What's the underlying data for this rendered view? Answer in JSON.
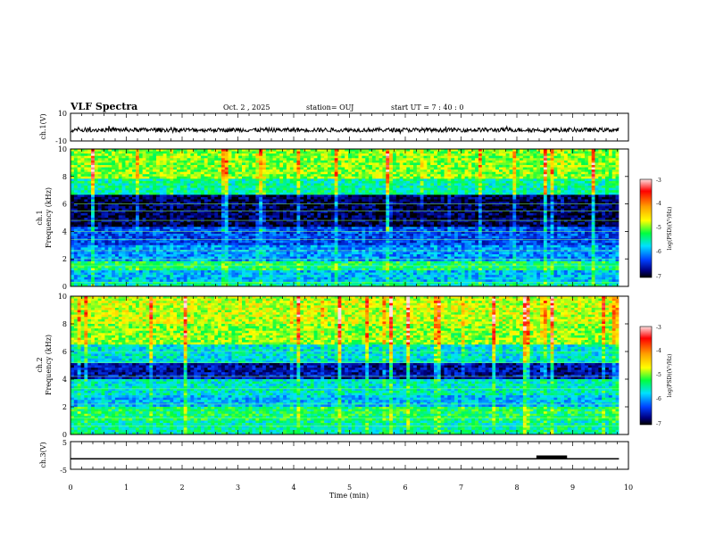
{
  "header": {
    "title": "VLF Spectra",
    "date": "Oct. 2 , 2025",
    "station": "station= OUJ",
    "start": "start  UT =   7 : 40 : 0"
  },
  "colorbar": {
    "label": "log(PSD)(V²/Hz)",
    "ticks": [
      "-3",
      "-4",
      "-5",
      "-6",
      "-7"
    ],
    "colors": [
      "#ffe0e0",
      "#ff0000",
      "#ffa000",
      "#ffff00",
      "#00ff40",
      "#00e0ff",
      "#0040ff",
      "#000080",
      "#000000"
    ]
  },
  "chart_data": [
    {
      "type": "line",
      "title": "ch.1 waveform",
      "ylabel": "ch.1(V)",
      "ylim": [
        -10,
        10
      ],
      "yticks": [
        "10",
        "-10"
      ],
      "xlim": [
        0,
        9.83
      ],
      "description_values": {
        "mean": -2,
        "amplitude": 1.5
      }
    },
    {
      "type": "heatmap",
      "title": "ch.1 spectrogram",
      "ylabel_top": "ch.1",
      "ylabel": "Frequency (kHz)",
      "ylim": [
        0,
        10
      ],
      "yticks": [
        "0",
        "2",
        "4",
        "6",
        "8",
        "10"
      ],
      "xlim": [
        0,
        9.83
      ],
      "bands": [
        {
          "from": 0,
          "to": 0.4,
          "level": 0.45
        },
        {
          "from": 0.4,
          "to": 1.2,
          "level": 0.35
        },
        {
          "from": 1.2,
          "to": 1.8,
          "level": 0.5
        },
        {
          "from": 1.8,
          "to": 3.0,
          "level": 0.3
        },
        {
          "from": 3.0,
          "to": 4.4,
          "level": 0.22
        },
        {
          "from": 4.4,
          "to": 6.6,
          "level": 0.05
        },
        {
          "from": 6.6,
          "to": 7.8,
          "level": 0.45
        },
        {
          "from": 7.8,
          "to": 10.0,
          "level": 0.6
        }
      ],
      "lines_khz": [
        0.3,
        1.5,
        2.0,
        2.6,
        3.4,
        4.0,
        4.8,
        5.5,
        6.0
      ]
    },
    {
      "type": "heatmap",
      "title": "ch.2 spectrogram",
      "ylabel_top": "ch.2",
      "ylabel": "Frequency (kHz)",
      "ylim": [
        0,
        10
      ],
      "yticks": [
        "0",
        "2",
        "4",
        "6",
        "8",
        "10"
      ],
      "xlim": [
        0,
        9.83
      ],
      "bands": [
        {
          "from": 0,
          "to": 1.0,
          "level": 0.45
        },
        {
          "from": 1.0,
          "to": 2.0,
          "level": 0.5
        },
        {
          "from": 2.0,
          "to": 2.8,
          "level": 0.35
        },
        {
          "from": 2.8,
          "to": 4.0,
          "level": 0.42
        },
        {
          "from": 4.0,
          "to": 5.2,
          "level": 0.12
        },
        {
          "from": 5.2,
          "to": 6.5,
          "level": 0.4
        },
        {
          "from": 6.5,
          "to": 8.0,
          "level": 0.6
        },
        {
          "from": 8.0,
          "to": 10.0,
          "level": 0.65
        }
      ],
      "lines_khz": [
        0.6,
        1.2,
        2.2,
        3.3,
        4.2,
        5.2,
        6.0
      ]
    },
    {
      "type": "line",
      "title": "ch.3 waveform",
      "ylabel": "ch.3(V)",
      "ylim": [
        -5,
        5
      ],
      "yticks": [
        "5",
        "-5"
      ],
      "xlim": [
        0,
        9.83
      ],
      "series": [
        {
          "name": "ch.3",
          "x": [
            0,
            9.83
          ],
          "y": [
            -1.2,
            -1.2
          ]
        }
      ],
      "segment": {
        "x": [
          8.35,
          8.9
        ],
        "y": -0.5
      }
    }
  ],
  "xaxis": {
    "label": "Time (min)",
    "range": [
      0,
      10
    ],
    "ticks": [
      "0",
      "1",
      "2",
      "3",
      "4",
      "5",
      "6",
      "7",
      "8",
      "9",
      "10"
    ]
  }
}
